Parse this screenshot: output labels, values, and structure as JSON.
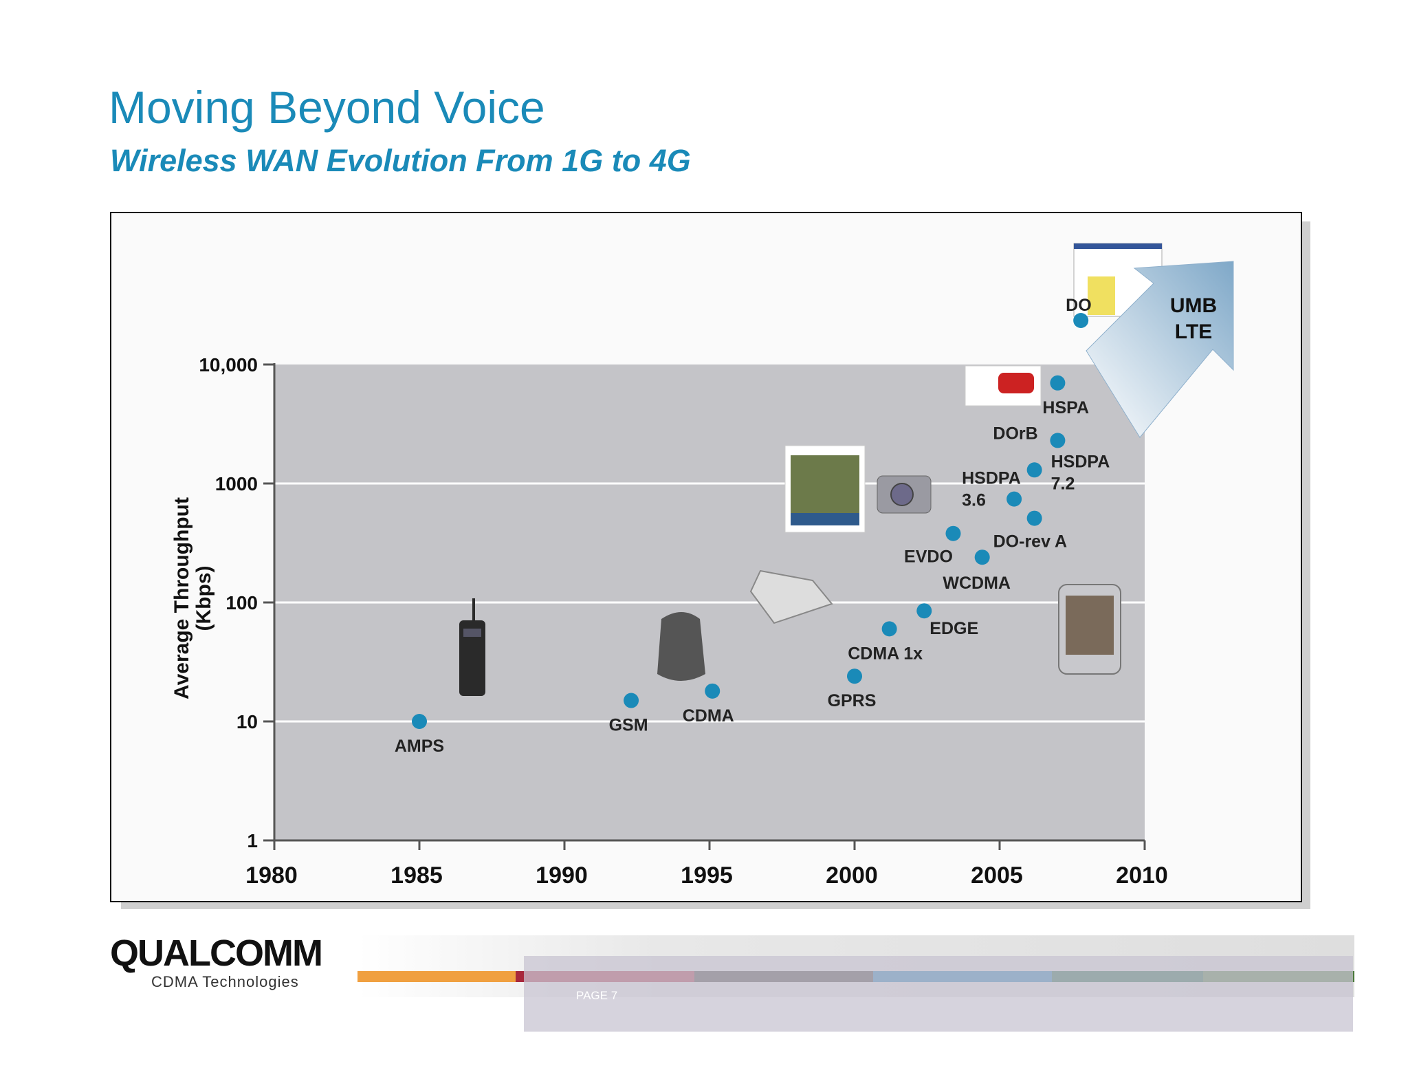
{
  "slide": {
    "title": "Moving Beyond Voice",
    "subtitle": "Wireless WAN Evolution From 1G to 4G",
    "page": "PAGE 7"
  },
  "footer": {
    "brand": "QUALCOMM",
    "tagline": "CDMA Technologies",
    "stripe_colors": [
      "#f0a040",
      "#a8283c",
      "#383430",
      "#1a78b0",
      "#186040",
      "#487838"
    ]
  },
  "colors": {
    "accent": "#1a8ab8",
    "plot_bg": "#c4c4c8",
    "point": "#1a8ab8",
    "arrow": "#7fa8c8"
  },
  "chart_data": {
    "type": "scatter",
    "title": "",
    "xlabel": "",
    "ylabel": "Average Throughput\n(Kbps)",
    "x_scale": "linear",
    "y_scale": "log",
    "xlim": [
      1980,
      2010
    ],
    "ylim": [
      1,
      10000
    ],
    "x_ticks": [
      "1980",
      "1985",
      "1990",
      "1995",
      "2000",
      "2005",
      "2010"
    ],
    "y_ticks": [
      "1",
      "10",
      "100",
      "1000",
      "10,000"
    ],
    "grid": true,
    "points": [
      {
        "label": "AMPS",
        "x": 1985,
        "y": 10
      },
      {
        "label": "GSM",
        "x": 1992.3,
        "y": 15
      },
      {
        "label": "CDMA",
        "x": 1995.1,
        "y": 18
      },
      {
        "label": "GPRS",
        "x": 2000,
        "y": 24
      },
      {
        "label": "CDMA 1x",
        "x": 2001.2,
        "y": 60
      },
      {
        "label": "EDGE",
        "x": 2002.4,
        "y": 85
      },
      {
        "label": "EVDO",
        "x": 2003.4,
        "y": 380
      },
      {
        "label": "WCDMA",
        "x": 2004.4,
        "y": 240
      },
      {
        "label": "HSDPA\n3.6",
        "x": 2005.5,
        "y": 740
      },
      {
        "label": "DO-rev A",
        "x": 2006.2,
        "y": 510
      },
      {
        "label": "HSDPA\n7.2",
        "x": 2006.2,
        "y": 1300
      },
      {
        "label": "DOrB",
        "x": 2007,
        "y": 2300
      },
      {
        "label": "HSPA",
        "x": 2007,
        "y": 7000
      },
      {
        "label": "DO",
        "x": 2007.8,
        "y": 14000
      }
    ],
    "arrow_labels": [
      "UMB",
      "LTE"
    ]
  }
}
